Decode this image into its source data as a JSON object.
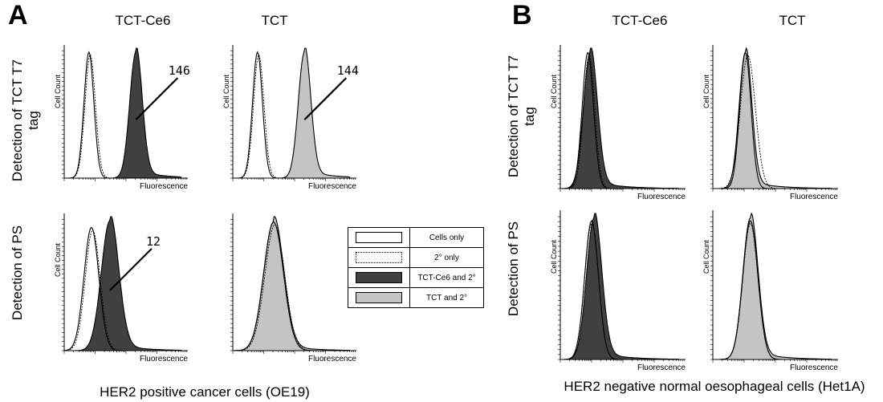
{
  "panels": [
    {
      "letter": "A",
      "caption": "HER2 positive cancer cells (OE19)",
      "columns": [
        "TCT-Ce6",
        "TCT"
      ],
      "rows": [
        "Detection of TCT T7 tag",
        "Detection of PS"
      ]
    },
    {
      "letter": "B",
      "caption": "HER2 negative normal oesophageal cells (Het1A)",
      "columns": [
        "TCT-Ce6",
        "TCT"
      ],
      "rows": [
        "Detection of TCT T7 tag",
        "Detection of PS"
      ]
    }
  ],
  "legend": [
    {
      "label": "Cells only",
      "style": "open"
    },
    {
      "label": "2° only",
      "style": "dotted"
    },
    {
      "label": "TCT-Ce6 and 2°",
      "style": "dark"
    },
    {
      "label": "TCT and 2°",
      "style": "light"
    }
  ],
  "colors": {
    "dark": "#404040",
    "light": "#c4c4c4",
    "line": "#000000"
  },
  "chart_data": [
    {
      "type": "area",
      "id": "A-tag-tctce6",
      "xlabel": "Fluorescence",
      "ylabel": "Cell Count",
      "series": [
        {
          "name": "Cells only",
          "peak": 0.2,
          "width": 0.04,
          "height": 0.97
        },
        {
          "name": "2° only",
          "peak": 0.21,
          "width": 0.042,
          "height": 0.95
        },
        {
          "name": "TCT-Ce6 and 2°",
          "peak": 0.58,
          "width": 0.05,
          "height": 0.97
        }
      ],
      "annotation": "146"
    },
    {
      "type": "area",
      "id": "A-tag-tct",
      "xlabel": "Fluorescence",
      "ylabel": "Cell Count",
      "series": [
        {
          "name": "Cells only",
          "peak": 0.2,
          "width": 0.04,
          "height": 0.97
        },
        {
          "name": "2° only",
          "peak": 0.21,
          "width": 0.042,
          "height": 0.95
        },
        {
          "name": "TCT and 2°",
          "peak": 0.58,
          "width": 0.05,
          "height": 0.97
        }
      ],
      "annotation": "144"
    },
    {
      "type": "area",
      "id": "A-ps-tctce6",
      "xlabel": "Fluorescence",
      "ylabel": "Cell Count",
      "series": [
        {
          "name": "Cells only",
          "peak": 0.22,
          "width": 0.06,
          "height": 0.92
        },
        {
          "name": "2° only",
          "peak": 0.23,
          "width": 0.06,
          "height": 0.9
        },
        {
          "name": "TCT-Ce6 and 2°",
          "peak": 0.37,
          "width": 0.07,
          "height": 0.97
        }
      ],
      "annotation": "12"
    },
    {
      "type": "area",
      "id": "A-ps-tct",
      "xlabel": "Fluorescence",
      "ylabel": "",
      "series": [
        {
          "name": "Cells only",
          "peak": 0.33,
          "width": 0.08,
          "height": 0.96
        },
        {
          "name": "2° only",
          "peak": 0.34,
          "width": 0.08,
          "height": 0.94
        },
        {
          "name": "TCT and 2°",
          "peak": 0.33,
          "width": 0.08,
          "height": 0.96
        }
      ],
      "annotation": ""
    },
    {
      "type": "area",
      "id": "B-tag-tctce6",
      "xlabel": "Fluorescence",
      "ylabel": "Cell Count",
      "series": [
        {
          "name": "Cells only",
          "peak": 0.22,
          "width": 0.045,
          "height": 0.97
        },
        {
          "name": "2° only",
          "peak": 0.23,
          "width": 0.045,
          "height": 0.95
        },
        {
          "name": "TCT-Ce6 and 2°",
          "peak": 0.24,
          "width": 0.055,
          "height": 0.97
        }
      ],
      "annotation": ""
    },
    {
      "type": "area",
      "id": "B-tag-tct",
      "xlabel": "Fluorescence",
      "ylabel": "Cell Count",
      "series": [
        {
          "name": "Cells only",
          "peak": 0.26,
          "width": 0.045,
          "height": 0.97
        },
        {
          "name": "2° only",
          "peak": 0.28,
          "width": 0.06,
          "height": 0.95
        },
        {
          "name": "TCT and 2°",
          "peak": 0.26,
          "width": 0.05,
          "height": 0.97
        }
      ],
      "annotation": ""
    },
    {
      "type": "area",
      "id": "B-ps-tctce6",
      "xlabel": "Fluorescence",
      "ylabel": "Cell Count",
      "series": [
        {
          "name": "Cells only",
          "peak": 0.25,
          "width": 0.055,
          "height": 0.95
        },
        {
          "name": "2° only",
          "peak": 0.25,
          "width": 0.055,
          "height": 0.93
        },
        {
          "name": "TCT-Ce6 and 2°",
          "peak": 0.27,
          "width": 0.06,
          "height": 0.97
        }
      ],
      "annotation": ""
    },
    {
      "type": "area",
      "id": "B-ps-tct",
      "xlabel": "Fluorescence",
      "ylabel": "Cell Count",
      "series": [
        {
          "name": "Cells only",
          "peak": 0.3,
          "width": 0.06,
          "height": 0.95
        },
        {
          "name": "2° only",
          "peak": 0.3,
          "width": 0.06,
          "height": 0.93
        },
        {
          "name": "TCT and 2°",
          "peak": 0.3,
          "width": 0.06,
          "height": 0.97
        }
      ],
      "annotation": ""
    }
  ]
}
